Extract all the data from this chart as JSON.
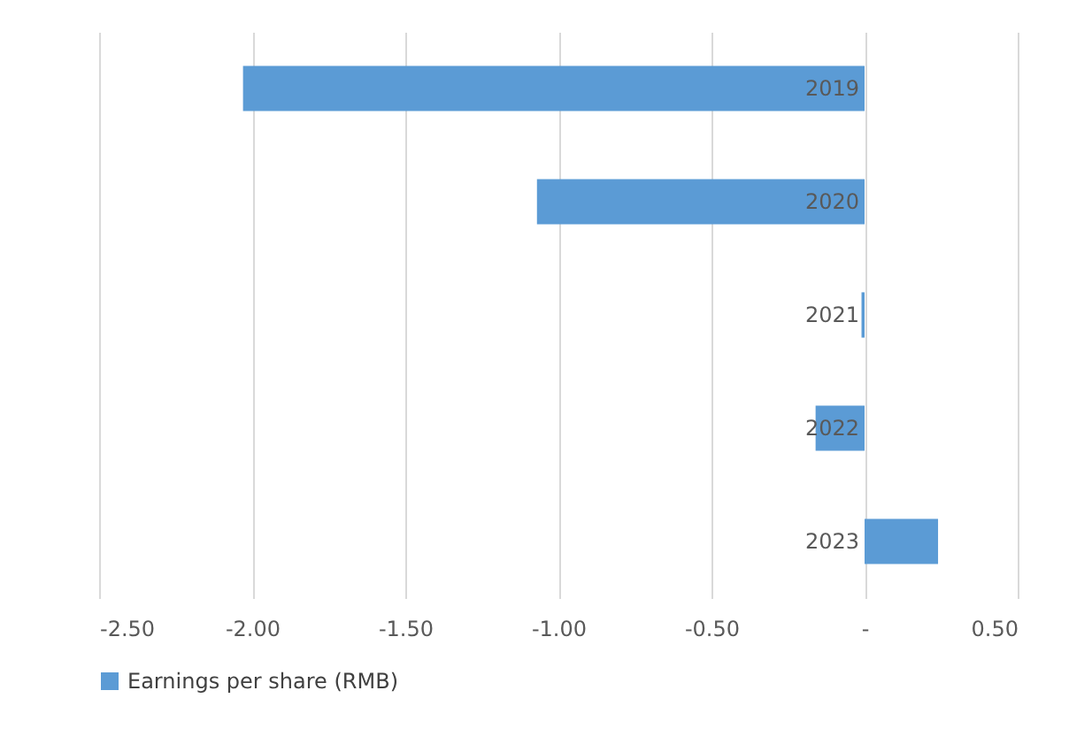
{
  "chart_data": {
    "type": "bar",
    "orientation": "horizontal",
    "categories": [
      "2019",
      "2020",
      "2021",
      "2022",
      "2023"
    ],
    "series": [
      {
        "name": "Earnings per share (RMB)",
        "color": "#5b9bd5",
        "values": [
          -2.03,
          -1.07,
          -0.01,
          -0.16,
          0.24
        ]
      }
    ],
    "xlim": [
      -2.5,
      0.5
    ],
    "xticks": [
      {
        "value": -2.5,
        "label": "-2.50"
      },
      {
        "value": -2.0,
        "label": "-2.00"
      },
      {
        "value": -1.5,
        "label": "-1.50"
      },
      {
        "value": -1.0,
        "label": "-1.00"
      },
      {
        "value": -0.5,
        "label": "-0.50"
      },
      {
        "value": 0,
        "label": "-"
      },
      {
        "value": 0.5,
        "label": "0.50"
      }
    ],
    "grid": "x",
    "legend": "bottom",
    "tick_labels": "x"
  }
}
